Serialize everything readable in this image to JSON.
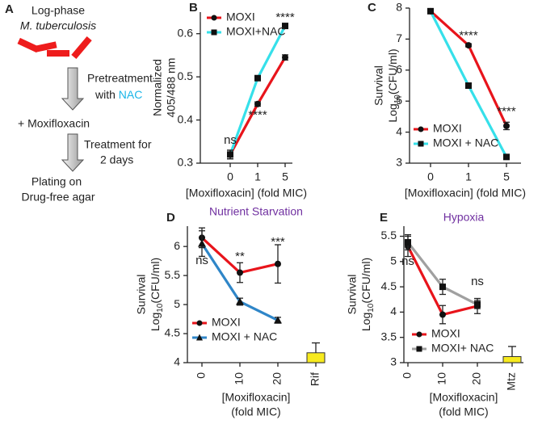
{
  "diagram": {
    "letter": "A",
    "line1": "Log-phase",
    "line2": "M. tuberculosis",
    "step1a": "Pretreatment",
    "step1b": "with ",
    "step1c": "NAC",
    "drug": "+ Moxifloxacin",
    "step2a": "Treatment for",
    "step2b": "2 days",
    "end1": "Plating on",
    "end2": "Drug-free agar"
  },
  "chart_data": [
    {
      "type": "line",
      "letter": "B",
      "ylabel": [
        "Normalized",
        "405/488 nm"
      ],
      "xlabel": [
        "[Moxifloxacin] (fold MIC)"
      ],
      "categories": [
        "0",
        "1",
        "5"
      ],
      "ylim": [
        0.3,
        0.65
      ],
      "yticks": [
        0.3,
        0.4,
        0.5,
        0.6
      ],
      "series": [
        {
          "name": "MOXI",
          "color": "#e8141b",
          "marker": "circle",
          "values": [
            0.32,
            0.437,
            0.545
          ],
          "errors": [
            0.01,
            0.005,
            0.006
          ]
        },
        {
          "name": "MOXI+NAC",
          "color": "#36e0ea",
          "marker": "square",
          "values": [
            0.32,
            0.497,
            0.618
          ],
          "errors": [
            0.01,
            0.004,
            0.004
          ]
        }
      ],
      "annotations": [
        {
          "text": "ns",
          "category": 0,
          "y": 0.352
        },
        {
          "text": "****",
          "category": 2,
          "y": 0.637
        },
        {
          "text": "****",
          "category": 1,
          "y": 0.41
        }
      ],
      "legend": "upper left"
    },
    {
      "type": "line",
      "letter": "C",
      "ylabel": [
        "Survival",
        [
          "Log",
          "10",
          "(CFU/ml)"
        ]
      ],
      "xlabel": [
        "[Moxifloxacin]  (fold MIC)"
      ],
      "categories": [
        "0",
        "1",
        "5"
      ],
      "ylim": [
        3,
        8
      ],
      "yticks": [
        3,
        4,
        5,
        6,
        7,
        8
      ],
      "series": [
        {
          "name": "MOXI",
          "color": "#e8141b",
          "marker": "circle",
          "values": [
            7.9,
            6.8,
            4.2
          ],
          "errors": [
            0.03,
            0.05,
            0.12
          ]
        },
        {
          "name": "MOXI + NAC",
          "color": "#36e0ea",
          "marker": "square",
          "values": [
            7.9,
            5.5,
            3.2
          ],
          "errors": [
            0.03,
            0.03,
            0.03
          ]
        }
      ],
      "annotations": [
        {
          "text": "****",
          "category": 1,
          "y": 7.1
        },
        {
          "text": "****",
          "category": 2,
          "y": 4.65
        }
      ],
      "legend": "lower left"
    },
    {
      "type": "line",
      "letter": "D",
      "title": "Nutrient Starvation",
      "title_color": "#7030a0",
      "ylabel": [
        "Survival",
        [
          "Log",
          "10",
          "(CFU/ml)"
        ]
      ],
      "xlabel": [
        "[Moxifloxacin]",
        "(fold MIC)"
      ],
      "categories": [
        "0",
        "10",
        "20",
        "Rif"
      ],
      "xtick_rotation": 90,
      "ylim": [
        4,
        6.35
      ],
      "yticks": [
        4,
        4.5,
        5,
        5.5,
        6
      ],
      "series": [
        {
          "name": "MOXI",
          "color": "#e8141b",
          "marker": "circle",
          "values": [
            6.15,
            5.55,
            5.7,
            null
          ],
          "errors": [
            0.17,
            0.17,
            0.33,
            null
          ]
        },
        {
          "name": "MOXI + NAC",
          "color": "#2f86c8",
          "marker": "triangle",
          "values": [
            6.05,
            5.05,
            4.73,
            null
          ],
          "errors": [
            0.22,
            0.06,
            0.05,
            null
          ]
        }
      ],
      "bars": {
        "color": "#f7ea1e",
        "values": [
          null,
          null,
          null,
          4.17
        ],
        "errors": [
          null,
          null,
          null,
          0.17
        ]
      },
      "annotations": [
        {
          "text": "ns",
          "category": 0,
          "y": 5.75
        },
        {
          "text": "**",
          "category": 1,
          "y": 5.82
        },
        {
          "text": "***",
          "category": 2,
          "y": 6.07
        }
      ],
      "legend": "lower left"
    },
    {
      "type": "line",
      "letter": "E",
      "title": "Hypoxia",
      "title_color": "#7030a0",
      "ylabel": [
        "Survival",
        [
          "Log",
          "10",
          "(CFU/ml)"
        ]
      ],
      "xlabel": [
        "[Moxifloxacin]",
        "(fold MIC)"
      ],
      "categories": [
        "0",
        "10",
        "20",
        "Mtz"
      ],
      "xtick_rotation": 90,
      "ylim": [
        3,
        5.7
      ],
      "yticks": [
        3,
        3.5,
        4,
        4.5,
        5,
        5.5
      ],
      "series": [
        {
          "name": "MOXI",
          "color": "#e8141b",
          "marker": "circle",
          "values": [
            5.3,
            3.95,
            4.12,
            null
          ],
          "errors": [
            0.2,
            0.18,
            0.15,
            null
          ]
        },
        {
          "name": "MOXI+ NAC",
          "color": "#a0a0a0",
          "marker": "square",
          "values": [
            5.38,
            4.5,
            4.15,
            null
          ],
          "errors": [
            0.15,
            0.15,
            0.08,
            null
          ]
        }
      ],
      "bars": {
        "color": "#f7ea1e",
        "values": [
          null,
          null,
          null,
          3.12
        ],
        "errors": [
          null,
          null,
          null,
          0.2
        ]
      },
      "annotations": [
        {
          "text": "ns",
          "category": 0,
          "y": 5.0
        },
        {
          "text": "ns",
          "category": 2,
          "y": 4.6
        }
      ],
      "legend": "lower left"
    }
  ]
}
